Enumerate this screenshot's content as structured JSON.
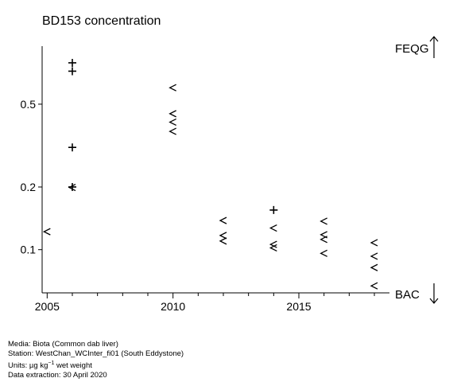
{
  "chart_data": {
    "type": "scatter",
    "title": "BD153 concentration",
    "xlabel": "",
    "ylabel": "",
    "y_scale": "log",
    "xlim": [
      2004.8,
      2018.6
    ],
    "ylim": [
      0.062,
      0.95
    ],
    "x_ticks": [
      2005,
      2010,
      2015
    ],
    "x_tick_labels": [
      "2005",
      "2010",
      "2015"
    ],
    "y_ticks": [
      0.1,
      0.2,
      0.5
    ],
    "y_tick_labels": [
      "0.1",
      "0.2",
      "0.5"
    ],
    "grid": false,
    "reference_lines": [
      {
        "label": "FEQG",
        "direction": "up"
      },
      {
        "label": "BAC",
        "direction": "down"
      }
    ],
    "series": [
      {
        "marker": "+",
        "points": [
          {
            "x": 2006,
            "y": 0.79
          },
          {
            "x": 2006,
            "y": 0.72
          },
          {
            "x": 2006,
            "y": 0.31
          },
          {
            "x": 2006,
            "y": 0.2
          },
          {
            "x": 2014,
            "y": 0.155
          }
        ]
      },
      {
        "marker": "<",
        "points": [
          {
            "x": 2005,
            "y": 0.122
          },
          {
            "x": 2006,
            "y": 0.199
          },
          {
            "x": 2010,
            "y": 0.6
          },
          {
            "x": 2010,
            "y": 0.45
          },
          {
            "x": 2010,
            "y": 0.41
          },
          {
            "x": 2010,
            "y": 0.37
          },
          {
            "x": 2012,
            "y": 0.138
          },
          {
            "x": 2012,
            "y": 0.117
          },
          {
            "x": 2012,
            "y": 0.11
          },
          {
            "x": 2014,
            "y": 0.127
          },
          {
            "x": 2014,
            "y": 0.106
          },
          {
            "x": 2014,
            "y": 0.102
          },
          {
            "x": 2016,
            "y": 0.137
          },
          {
            "x": 2016,
            "y": 0.118
          },
          {
            "x": 2016,
            "y": 0.112
          },
          {
            "x": 2016,
            "y": 0.096
          },
          {
            "x": 2018,
            "y": 0.108
          },
          {
            "x": 2018,
            "y": 0.093
          },
          {
            "x": 2018,
            "y": 0.082
          },
          {
            "x": 2018,
            "y": 0.067
          }
        ]
      }
    ]
  },
  "footer": {
    "media": "Media: Biota (Common dab liver)",
    "station": "Station: WestChan_WCInter_fi01 (South Eddystone)",
    "units_prefix": "Units:  µg kg",
    "units_sup": "−1",
    "units_suffix": " wet weight",
    "extraction": "Data extraction: 30 April 2020"
  }
}
